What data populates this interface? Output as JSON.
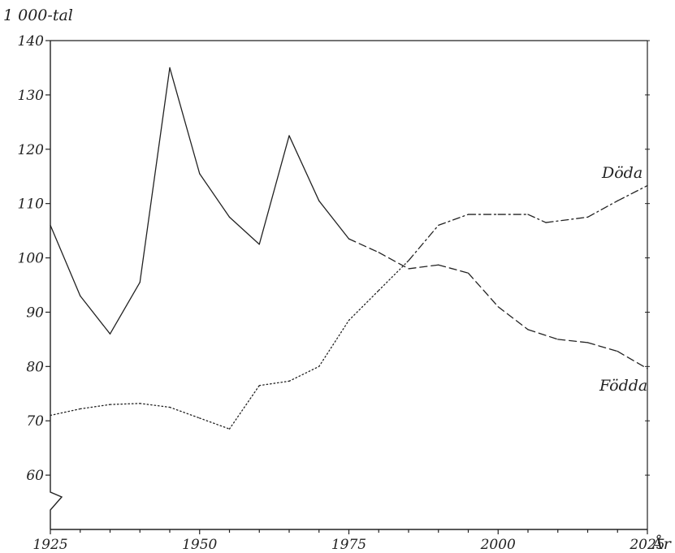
{
  "chart_data": {
    "type": "line",
    "title": "",
    "ylabel": "1 000-tal",
    "xlabel": "År",
    "xlim": [
      1925,
      2025
    ],
    "ylim": [
      50,
      140
    ],
    "axis_break": "y",
    "grid": false,
    "x_ticks": [
      1925,
      1950,
      1975,
      2000,
      2025
    ],
    "y_ticks": [
      60,
      70,
      80,
      90,
      100,
      110,
      120,
      130,
      140
    ],
    "series": [
      {
        "name": "Födda",
        "color": "#222222",
        "points": [
          {
            "x": 1925,
            "y": 106,
            "style": "solid"
          },
          {
            "x": 1930,
            "y": 93,
            "style": "solid"
          },
          {
            "x": 1935,
            "y": 86,
            "style": "solid"
          },
          {
            "x": 1940,
            "y": 95.5,
            "style": "solid"
          },
          {
            "x": 1945,
            "y": 135,
            "style": "solid"
          },
          {
            "x": 1950,
            "y": 115.5,
            "style": "solid"
          },
          {
            "x": 1955,
            "y": 107.5,
            "style": "solid"
          },
          {
            "x": 1960,
            "y": 102.5,
            "style": "solid"
          },
          {
            "x": 1965,
            "y": 122.5,
            "style": "solid"
          },
          {
            "x": 1970,
            "y": 110.5,
            "style": "solid"
          },
          {
            "x": 1975,
            "y": 103.5,
            "style": "dashed"
          },
          {
            "x": 1980,
            "y": 101,
            "style": "dashed"
          },
          {
            "x": 1985,
            "y": 98,
            "style": "dashed"
          },
          {
            "x": 1990,
            "y": 98.7,
            "style": "dashed"
          },
          {
            "x": 1995,
            "y": 97.2,
            "style": "dashed"
          },
          {
            "x": 2000,
            "y": 91,
            "style": "dashed"
          },
          {
            "x": 2005,
            "y": 86.8,
            "style": "dashed"
          },
          {
            "x": 2010,
            "y": 85,
            "style": "dashed"
          },
          {
            "x": 2015,
            "y": 84.4,
            "style": "dashed"
          },
          {
            "x": 2020,
            "y": 82.8,
            "style": "dashed"
          },
          {
            "x": 2025,
            "y": 79.6,
            "style": "dashed"
          }
        ]
      },
      {
        "name": "Döda",
        "color": "#222222",
        "points": [
          {
            "x": 1925,
            "y": 71,
            "style": "dotted"
          },
          {
            "x": 1930,
            "y": 72.2,
            "style": "dotted"
          },
          {
            "x": 1935,
            "y": 73,
            "style": "dotted"
          },
          {
            "x": 1940,
            "y": 73.2,
            "style": "dotted"
          },
          {
            "x": 1945,
            "y": 72.5,
            "style": "dotted"
          },
          {
            "x": 1950,
            "y": 70.5,
            "style": "dotted"
          },
          {
            "x": 1955,
            "y": 68.5,
            "style": "dotted"
          },
          {
            "x": 1960,
            "y": 76.5,
            "style": "dotted"
          },
          {
            "x": 1965,
            "y": 77.3,
            "style": "dotted"
          },
          {
            "x": 1970,
            "y": 80,
            "style": "dotted"
          },
          {
            "x": 1975,
            "y": 88.5,
            "style": "dotted"
          },
          {
            "x": 1980,
            "y": 94,
            "style": "dotted"
          },
          {
            "x": 1985,
            "y": 99.5,
            "style": "dashdot"
          },
          {
            "x": 1990,
            "y": 106,
            "style": "dashdot"
          },
          {
            "x": 1995,
            "y": 108,
            "style": "dashdot"
          },
          {
            "x": 2000,
            "y": 108,
            "style": "dashdot"
          },
          {
            "x": 2005,
            "y": 108,
            "style": "dashdot"
          },
          {
            "x": 2008,
            "y": 106.5,
            "style": "dashdot"
          },
          {
            "x": 2015,
            "y": 107.5,
            "style": "dashdot"
          },
          {
            "x": 2020,
            "y": 110.5,
            "style": "dashdot"
          },
          {
            "x": 2025,
            "y": 113.3,
            "style": "dashdot"
          }
        ]
      }
    ]
  }
}
